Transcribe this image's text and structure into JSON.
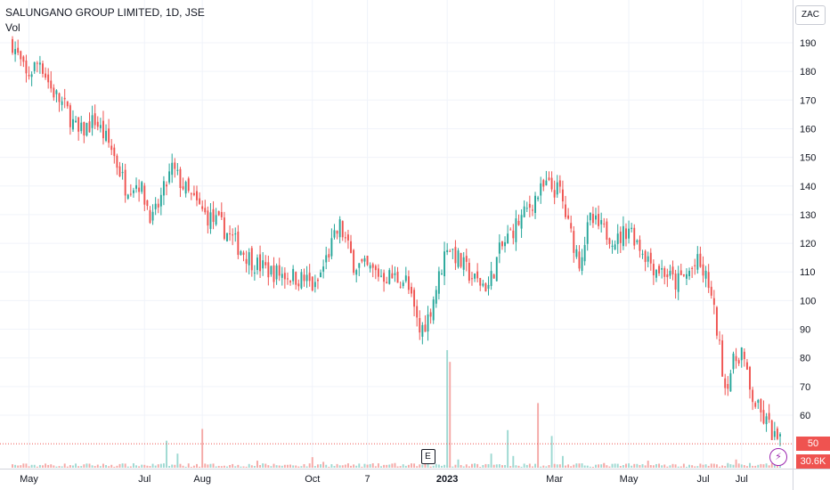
{
  "chart_data": {
    "type": "candlestick",
    "title": "SALUNGANO GROUP LIMITED, 1D, JSE",
    "volume_label": "Vol",
    "currency": "ZAC",
    "y_ticks": [
      60,
      70,
      80,
      90,
      100,
      110,
      120,
      130,
      140,
      150,
      160,
      170,
      180,
      190
    ],
    "ylim": [
      44,
      197
    ],
    "x_labels": [
      {
        "label": "May",
        "index": 6,
        "bold": false
      },
      {
        "label": "Jul",
        "index": 48,
        "bold": false
      },
      {
        "label": "Aug",
        "index": 69,
        "bold": false
      },
      {
        "label": "Oct",
        "index": 109,
        "bold": false
      },
      {
        "label": "7",
        "index": 129,
        "bold": false
      },
      {
        "label": "2023",
        "index": 158,
        "bold": true
      },
      {
        "label": "Mar",
        "index": 197,
        "bold": false
      },
      {
        "label": "May",
        "index": 224,
        "bold": false
      },
      {
        "label": "Jul",
        "index": 251,
        "bold": false
      },
      {
        "label": "Jul",
        "index": 265,
        "bold": false
      }
    ],
    "last_price": "50",
    "last_volume": "30.6K",
    "last_price_value": 50,
    "earnings_marker": "E",
    "earnings_index": 151,
    "colors": {
      "up": "#26a69a",
      "down": "#ef5350",
      "grid": "#f0f3fa",
      "text": "#131722"
    },
    "anchors": [
      [
        0,
        190
      ],
      [
        5,
        178
      ],
      [
        10,
        184
      ],
      [
        14,
        174
      ],
      [
        20,
        166
      ],
      [
        24,
        158
      ],
      [
        30,
        163
      ],
      [
        36,
        153
      ],
      [
        41,
        140
      ],
      [
        46,
        141
      ],
      [
        51,
        128
      ],
      [
        58,
        146
      ],
      [
        64,
        137
      ],
      [
        70,
        130
      ],
      [
        76,
        126
      ],
      [
        82,
        119
      ],
      [
        88,
        113
      ],
      [
        94,
        110
      ],
      [
        100,
        109
      ],
      [
        107,
        107
      ],
      [
        110,
        104
      ],
      [
        115,
        117
      ],
      [
        119,
        126
      ],
      [
        124,
        113
      ],
      [
        129,
        111
      ],
      [
        134,
        109
      ],
      [
        139,
        108
      ],
      [
        143,
        107
      ],
      [
        148,
        89
      ],
      [
        151,
        94
      ],
      [
        155,
        108
      ],
      [
        158,
        120
      ],
      [
        163,
        113
      ],
      [
        168,
        107
      ],
      [
        173,
        105
      ],
      [
        177,
        117
      ],
      [
        182,
        125
      ],
      [
        186,
        130
      ],
      [
        190,
        136
      ],
      [
        194,
        140
      ],
      [
        199,
        138
      ],
      [
        202,
        126
      ],
      [
        206,
        114
      ],
      [
        210,
        128
      ],
      [
        214,
        125
      ],
      [
        220,
        121
      ],
      [
        224,
        126
      ],
      [
        228,
        119
      ],
      [
        233,
        112
      ],
      [
        237,
        110
      ],
      [
        241,
        106
      ],
      [
        245,
        109
      ],
      [
        249,
        113
      ],
      [
        253,
        106
      ],
      [
        256,
        90
      ],
      [
        259,
        70
      ],
      [
        262,
        78
      ],
      [
        265,
        83
      ],
      [
        268,
        68
      ],
      [
        272,
        60
      ],
      [
        275,
        56
      ],
      [
        277,
        52
      ],
      [
        279,
        50
      ]
    ],
    "volume_spikes": [
      [
        56,
        0.23
      ],
      [
        60,
        0.12
      ],
      [
        69,
        0.33
      ],
      [
        89,
        0.06
      ],
      [
        109,
        0.09
      ],
      [
        113,
        0.05
      ],
      [
        139,
        0.04
      ],
      [
        158,
        1.0
      ],
      [
        159,
        0.9
      ],
      [
        162,
        0.07
      ],
      [
        168,
        0.03
      ],
      [
        174,
        0.12
      ],
      [
        180,
        0.32
      ],
      [
        182,
        0.1
      ],
      [
        191,
        0.55
      ],
      [
        196,
        0.27
      ],
      [
        200,
        0.1
      ],
      [
        215,
        0.04
      ],
      [
        231,
        0.06
      ],
      [
        260,
        0.04
      ],
      [
        263,
        0.07
      ],
      [
        268,
        0.04
      ]
    ]
  }
}
